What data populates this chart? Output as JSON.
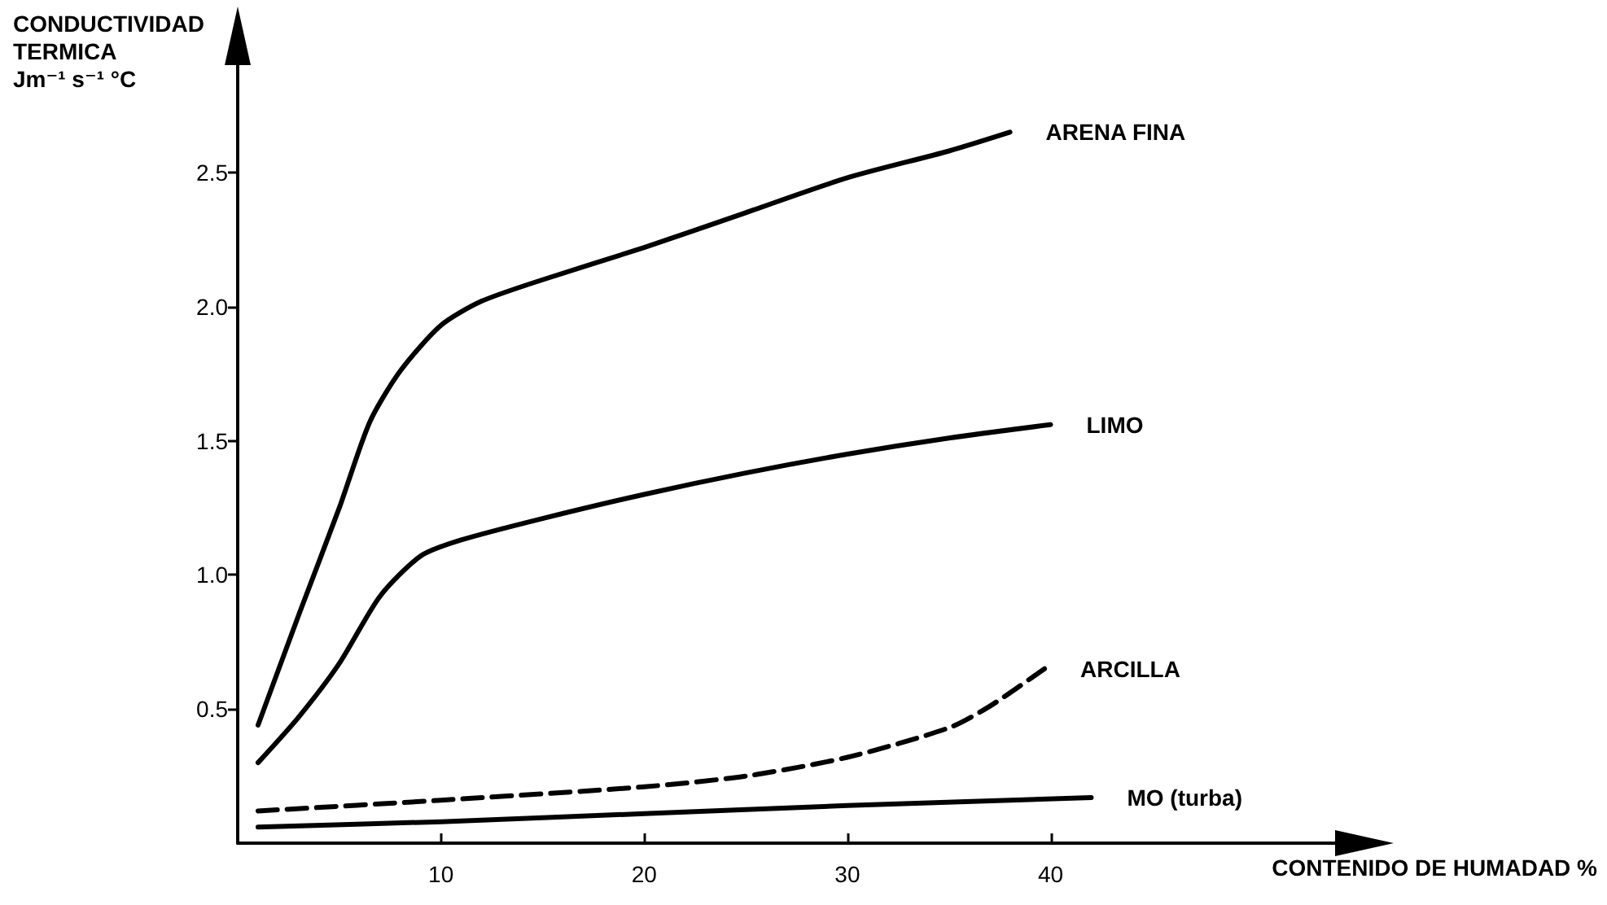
{
  "chart_data": {
    "type": "line",
    "xlabel": "CONTENIDO DE HUMADAD %",
    "ylabel": "CONDUCTIVIDAD\nTERMICA\nJm⁻¹ s⁻¹ °C",
    "xlim": [
      0,
      54
    ],
    "xticks": [
      10,
      20,
      30,
      40
    ],
    "ylim": [
      0,
      2.9
    ],
    "yticks": [
      {
        "value": 0.5,
        "label": "0.5"
      },
      {
        "value": 1.0,
        "label": "1.0"
      },
      {
        "value": 1.5,
        "label": "1.5"
      },
      {
        "value": 2.0,
        "label": "2.0"
      },
      {
        "value": 2.5,
        "label": "2.5"
      }
    ],
    "grid": false,
    "legend": false,
    "marker": "none",
    "series": [
      {
        "name": "ARENA FINA",
        "color": "#000000",
        "line_style": "solid",
        "x": [
          1,
          3,
          5,
          6.5,
          8,
          10,
          12,
          15,
          20,
          25,
          30,
          35,
          38
        ],
        "values": [
          0.44,
          0.85,
          1.25,
          1.57,
          1.76,
          1.93,
          2.02,
          2.1,
          2.22,
          2.35,
          2.48,
          2.58,
          2.65
        ]
      },
      {
        "name": "LIMO",
        "color": "#000000",
        "line_style": "solid",
        "x": [
          1,
          3,
          5,
          7,
          9,
          11,
          15,
          20,
          25,
          30,
          35,
          40
        ],
        "values": [
          0.3,
          0.47,
          0.67,
          0.92,
          1.07,
          1.13,
          1.21,
          1.3,
          1.38,
          1.45,
          1.51,
          1.56
        ]
      },
      {
        "name": "ARCILLA",
        "color": "#000000",
        "line_style": "dashed",
        "x": [
          1,
          10,
          20,
          25,
          30,
          35,
          37,
          39.7
        ],
        "values": [
          0.12,
          0.16,
          0.21,
          0.25,
          0.32,
          0.43,
          0.51,
          0.65
        ]
      },
      {
        "name": "MO (turba)",
        "color": "#000000",
        "line_style": "solid",
        "x": [
          1,
          10,
          20,
          30,
          42
        ],
        "values": [
          0.06,
          0.08,
          0.11,
          0.14,
          0.17
        ]
      }
    ]
  }
}
